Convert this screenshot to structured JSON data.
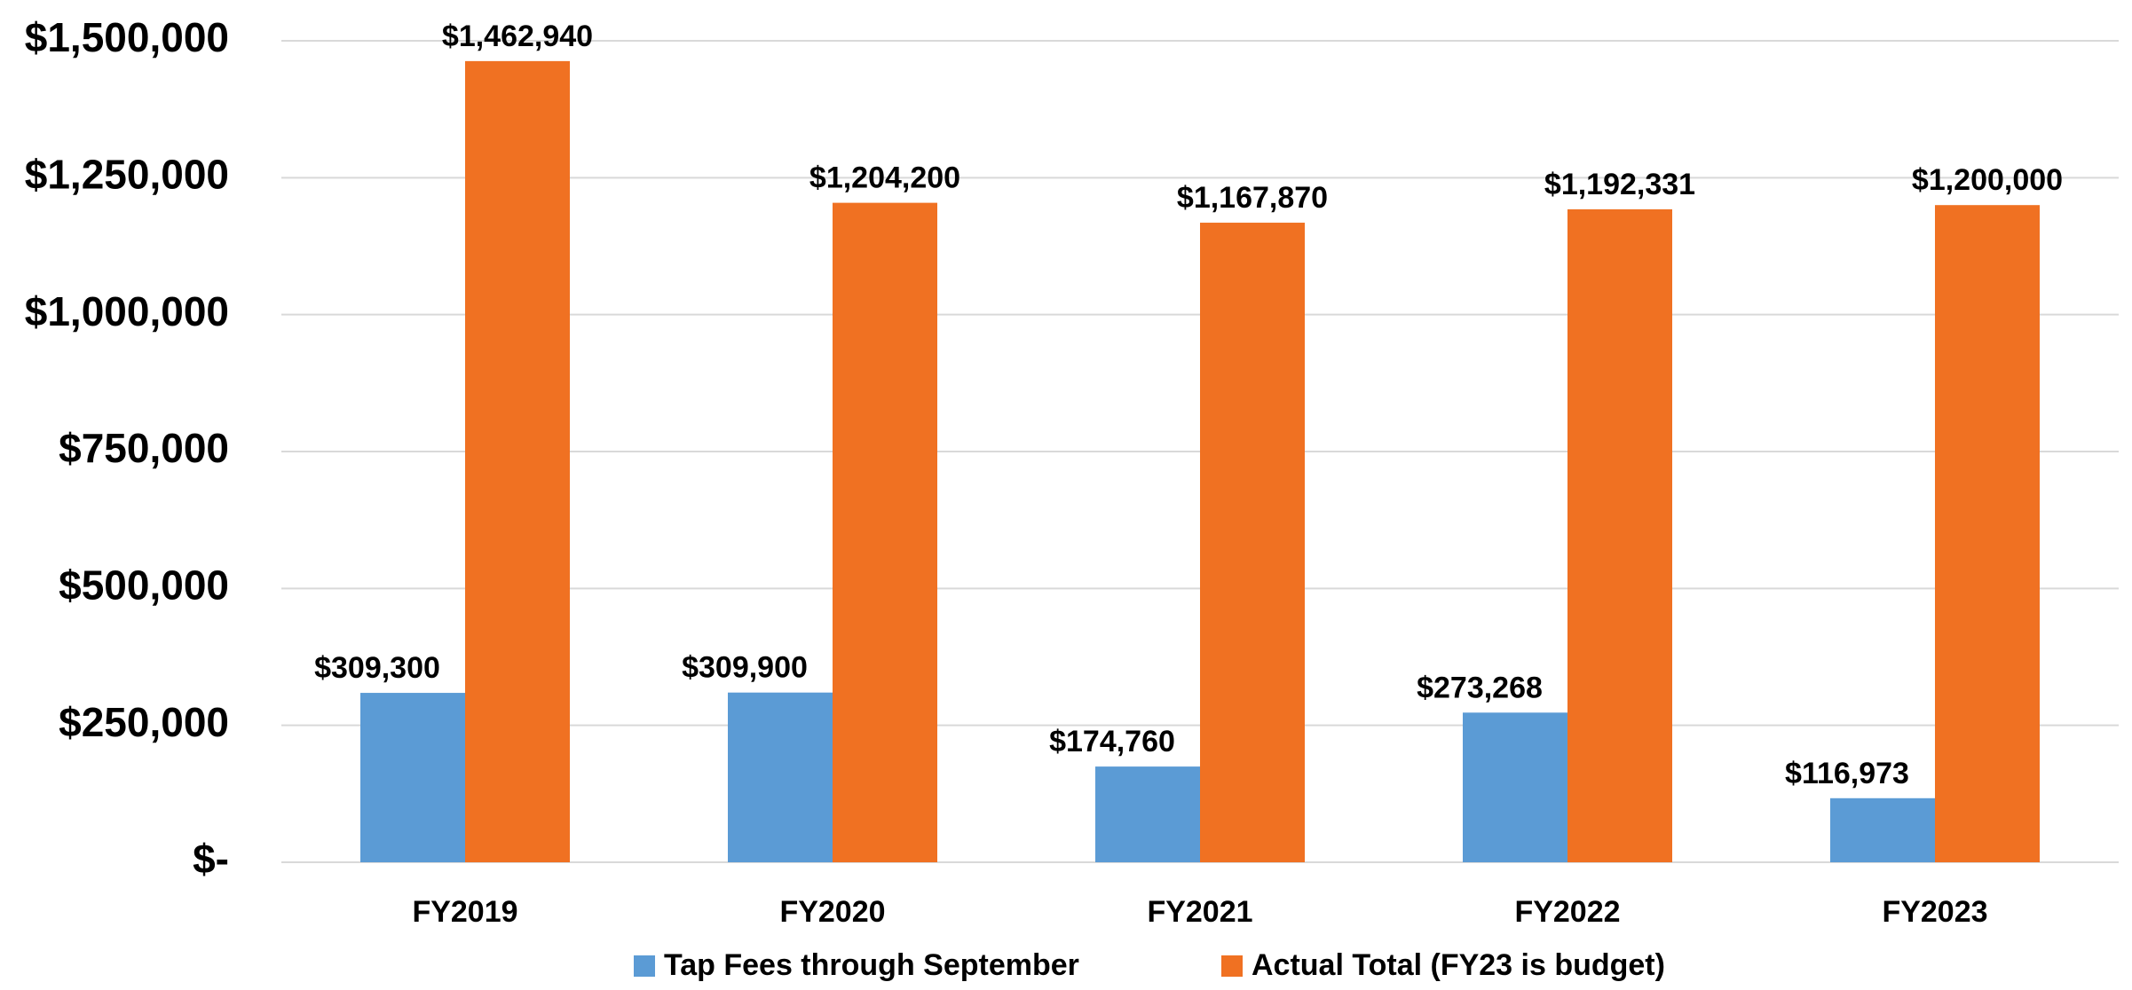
{
  "chart_data": {
    "type": "bar",
    "categories": [
      "FY2019",
      "FY2020",
      "FY2021",
      "FY2022",
      "FY2023"
    ],
    "series": [
      {
        "name": "Tap Fees through September",
        "color": "#5b9bd5",
        "values": [
          309300,
          309900,
          174760,
          273268,
          116973
        ],
        "value_labels": [
          "$309,300",
          "$309,900",
          "$174,760",
          "$273,268",
          "$116,973"
        ]
      },
      {
        "name": "Actual Total (FY23 is budget)",
        "color": "#f07122",
        "values": [
          1462940,
          1204200,
          1167870,
          1192331,
          1200000
        ],
        "value_labels": [
          "$1,462,940",
          "$1,204,200",
          "$1,167,870",
          "$1,192,331",
          "$1,200,000"
        ]
      }
    ],
    "ylim": [
      0,
      1500000
    ],
    "yticks": [
      {
        "value": 0,
        "label": "$-"
      },
      {
        "value": 250000,
        "label": "$250,000"
      },
      {
        "value": 500000,
        "label": "$500,000"
      },
      {
        "value": 750000,
        "label": "$750,000"
      },
      {
        "value": 1000000,
        "label": "$1,000,000"
      },
      {
        "value": 1250000,
        "label": "$1,250,000"
      },
      {
        "value": 1500000,
        "label": "$1,500,000"
      }
    ],
    "grid": true,
    "legend": "bottom"
  }
}
